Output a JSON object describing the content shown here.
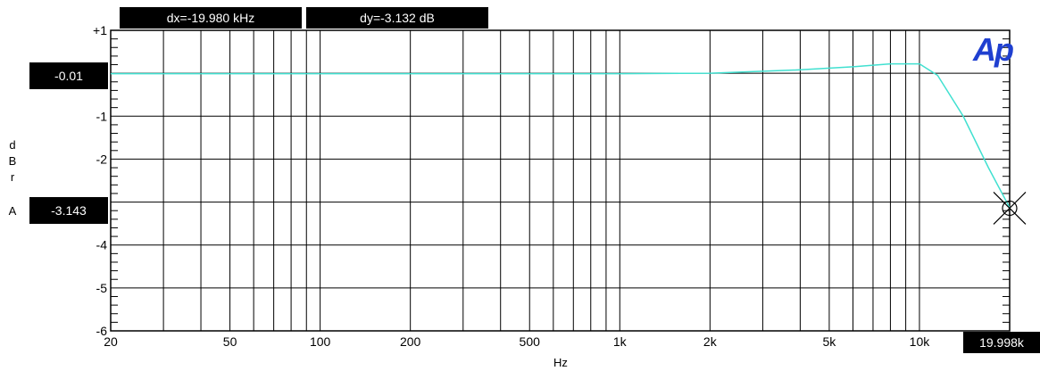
{
  "chart_data": {
    "type": "line",
    "x_scale": "log",
    "xlabel": "Hz",
    "ylabel_lines": [
      "d",
      "B",
      "r",
      "",
      "A"
    ],
    "xlim": [
      20,
      20000
    ],
    "ylim": [
      -6,
      1
    ],
    "x_ticks": [
      {
        "value": 20,
        "label": "20"
      },
      {
        "value": 50,
        "label": "50"
      },
      {
        "value": 100,
        "label": "100"
      },
      {
        "value": 200,
        "label": "200"
      },
      {
        "value": 500,
        "label": "500"
      },
      {
        "value": 1000,
        "label": "1k"
      },
      {
        "value": 2000,
        "label": "2k"
      },
      {
        "value": 5000,
        "label": "5k"
      },
      {
        "value": 10000,
        "label": "10k"
      }
    ],
    "y_ticks": [
      {
        "value": 1,
        "label": "+1"
      },
      {
        "value": -1,
        "label": "-1"
      },
      {
        "value": -2,
        "label": "-2"
      },
      {
        "value": -3,
        "label": "-3"
      },
      {
        "value": -4,
        "label": "-4"
      },
      {
        "value": -5,
        "label": "-5"
      },
      {
        "value": -6,
        "label": "-6"
      }
    ],
    "series": [
      {
        "color": "#40e0d0",
        "x": [
          20,
          1000,
          2000,
          4000,
          6000,
          8000,
          10000,
          11500,
          14000,
          17000,
          20000
        ],
        "y": [
          -0.01,
          -0.01,
          0.0,
          0.08,
          0.15,
          0.22,
          0.22,
          -0.05,
          -1.0,
          -2.2,
          -3.13
        ]
      }
    ],
    "cursor": {
      "x": 19998,
      "y": -3.143
    },
    "readouts": {
      "dx": "dx=-19.980 kHz",
      "dy": "dy=-3.132  dB",
      "y_level_ref": "-0.01",
      "y_level_cursor": "-3.143",
      "x_cursor": "19.998k"
    },
    "logo": "Ap",
    "colors": {
      "trace": "#40e0d0",
      "logo": "#1f3fd0",
      "readout_bg": "#000000"
    }
  }
}
